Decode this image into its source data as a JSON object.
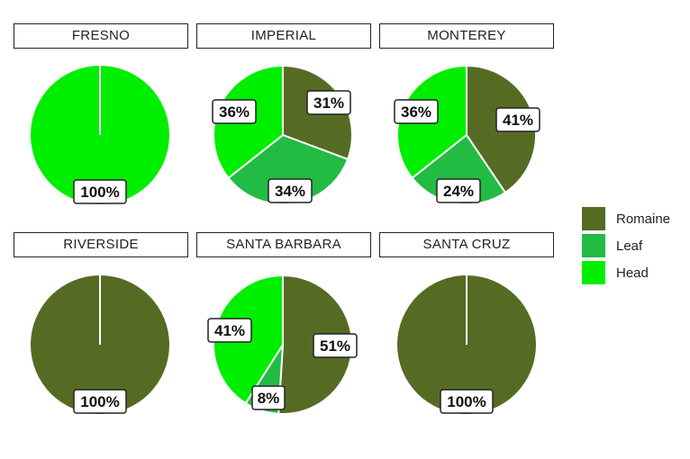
{
  "chart_data": {
    "type": "pie",
    "series_names": [
      "Romaine",
      "Leaf",
      "Head"
    ],
    "colors": {
      "Romaine": "#556B24",
      "Leaf": "#22BB44",
      "Head": "#00EE00"
    },
    "panels": [
      {
        "title": "FRESNO",
        "values": [
          0,
          0,
          100
        ],
        "labels": [
          "",
          "",
          "100%"
        ]
      },
      {
        "title": "IMPERIAL",
        "values": [
          31,
          34,
          36
        ],
        "labels": [
          "31%",
          "34%",
          "36%"
        ]
      },
      {
        "title": "MONTEREY",
        "values": [
          41,
          24,
          36
        ],
        "labels": [
          "41%",
          "24%",
          "36%"
        ]
      },
      {
        "title": "RIVERSIDE",
        "values": [
          100,
          0,
          0
        ],
        "labels": [
          "100%",
          "",
          ""
        ]
      },
      {
        "title": "SANTA BARBARA",
        "values": [
          51,
          8,
          41
        ],
        "labels": [
          "51%",
          "8%",
          "41%"
        ]
      },
      {
        "title": "SANTA CRUZ",
        "values": [
          100,
          0,
          0
        ],
        "labels": [
          "100%",
          "",
          ""
        ]
      }
    ],
    "legend": [
      "Romaine",
      "Leaf",
      "Head"
    ]
  }
}
